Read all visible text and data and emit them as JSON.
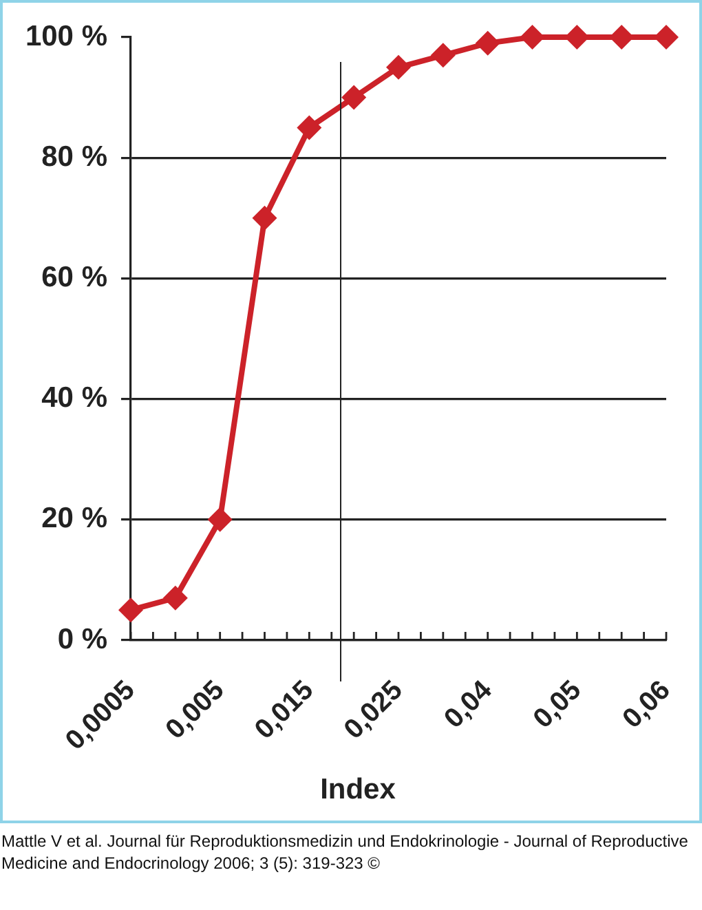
{
  "chart_data": {
    "type": "line",
    "xlabel": "Index",
    "categories": [
      "0,0005",
      null,
      "0,005",
      null,
      "0,015",
      null,
      "0,025",
      null,
      "0,04",
      null,
      "0,05",
      null,
      "0,06"
    ],
    "series": [
      {
        "color": "#cc2229",
        "values": [
          5,
          7,
          20,
          70,
          85,
          90,
          95,
          97,
          99,
          100,
          100,
          100,
          100
        ]
      }
    ],
    "ylim": [
      0,
      100
    ],
    "yticks": [
      {
        "value": 0,
        "label": "0 %"
      },
      {
        "value": 20,
        "label": "20 %"
      },
      {
        "value": 40,
        "label": "40 %"
      },
      {
        "value": 60,
        "label": "60 %"
      },
      {
        "value": 80,
        "label": "80 %"
      },
      {
        "value": 100,
        "label": "100 %"
      }
    ],
    "grid": "y",
    "marker": "diamond",
    "line_style": "solid",
    "annotations": [
      "Mattle V et al. Journal für Reproduktionsmedizin und Endokrinologie - Journal of Reproductive Medicine and Endocrinology 2006; 3 (5): 319-323 ©"
    ]
  }
}
